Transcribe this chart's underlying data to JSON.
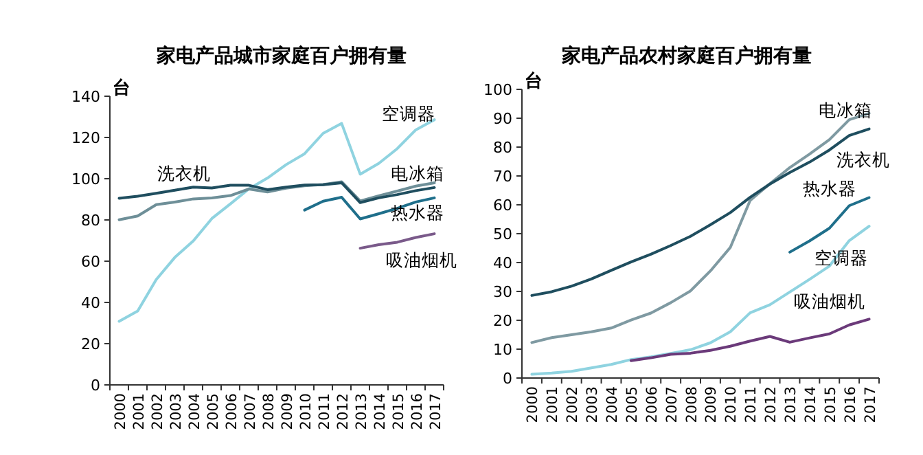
{
  "chart_data": [
    {
      "type": "line",
      "title": "家电产品城市家庭百户拥有量",
      "ylabel": "台",
      "categories": [
        "2000",
        "2001",
        "2002",
        "2003",
        "2004",
        "2005",
        "2006",
        "2007",
        "2008",
        "2009",
        "2010",
        "2011",
        "2012",
        "2013",
        "2014",
        "2015",
        "2016",
        "2017"
      ],
      "ylim": [
        0,
        140
      ],
      "yticks": [
        0,
        20,
        40,
        60,
        80,
        100,
        120,
        140
      ],
      "grid": false,
      "legend": false,
      "marker": "none",
      "line_style": "solid",
      "series": [
        {
          "name": "空调器",
          "color": "#8fd3e0",
          "values": [
            30.8,
            35.8,
            51.1,
            61.8,
            69.8,
            80.7,
            87.8,
            95.1,
            100.3,
            106.8,
            112.1,
            122.0,
            126.8,
            102.2,
            107.4,
            114.6,
            123.7,
            128.6
          ]
        },
        {
          "name": "电冰箱",
          "color": "#6e8f98",
          "values": [
            80.1,
            81.9,
            87.4,
            88.7,
            90.2,
            90.7,
            91.8,
            95.0,
            93.6,
            95.4,
            96.6,
            97.2,
            98.5,
            89.2,
            91.7,
            94.0,
            96.4,
            98.0
          ]
        },
        {
          "name": "洗衣机",
          "color": "#1f4e5f",
          "values": [
            90.5,
            91.5,
            92.9,
            94.4,
            95.9,
            95.5,
            96.8,
            96.8,
            94.7,
            95.9,
            96.9,
            97.1,
            98.0,
            88.4,
            90.7,
            92.3,
            94.2,
            95.7
          ]
        },
        {
          "name": "热水器",
          "color": "#1f6f8b",
          "values": [
            null,
            null,
            null,
            null,
            null,
            null,
            null,
            null,
            null,
            null,
            84.8,
            89.1,
            91.0,
            80.5,
            83.0,
            85.6,
            88.7,
            90.7
          ]
        },
        {
          "name": "吸油烟机",
          "color": "#7a5a8a",
          "values": [
            null,
            null,
            null,
            null,
            null,
            null,
            null,
            null,
            null,
            null,
            null,
            null,
            null,
            66.3,
            68.0,
            69.2,
            71.5,
            73.3
          ]
        }
      ]
    },
    {
      "type": "line",
      "title": "家电产品农村家庭百户拥有量",
      "ylabel": "台",
      "categories": [
        "2000",
        "2001",
        "2002",
        "2003",
        "2004",
        "2005",
        "2006",
        "2007",
        "2008",
        "2009",
        "2010",
        "2011",
        "2012",
        "2013",
        "2014",
        "2015",
        "2016",
        "2017"
      ],
      "ylim": [
        0,
        100
      ],
      "yticks": [
        0,
        10,
        20,
        30,
        40,
        50,
        60,
        70,
        80,
        90,
        100
      ],
      "grid": false,
      "legend": false,
      "marker": "none",
      "line_style": "solid",
      "series": [
        {
          "name": "电冰箱",
          "color": "#7f9aa2",
          "values": [
            12.3,
            14.0,
            15.0,
            16.0,
            17.3,
            20.1,
            22.5,
            26.1,
            30.2,
            37.1,
            45.2,
            61.5,
            67.3,
            72.9,
            77.6,
            82.6,
            89.5,
            91.7
          ]
        },
        {
          "name": "洗衣机",
          "color": "#1f4e5f",
          "values": [
            28.6,
            29.9,
            31.8,
            34.3,
            37.3,
            40.2,
            42.9,
            45.9,
            49.1,
            53.1,
            57.3,
            62.6,
            67.2,
            71.2,
            74.8,
            79.0,
            84.0,
            86.3
          ]
        },
        {
          "name": "热水器",
          "color": "#1f6f8b",
          "values": [
            null,
            null,
            null,
            null,
            null,
            null,
            null,
            null,
            null,
            null,
            null,
            null,
            null,
            43.6,
            47.5,
            51.9,
            59.7,
            62.5
          ]
        },
        {
          "name": "空调器",
          "color": "#8fd3e0",
          "values": [
            1.3,
            1.7,
            2.3,
            3.5,
            4.7,
            6.4,
            7.3,
            8.5,
            9.8,
            12.2,
            16.0,
            22.6,
            25.4,
            29.8,
            34.2,
            38.8,
            47.6,
            52.6
          ]
        },
        {
          "name": "吸油烟机",
          "color": "#6b3a7a",
          "values": [
            null,
            null,
            null,
            null,
            null,
            6.0,
            7.0,
            8.2,
            8.6,
            9.6,
            11.0,
            12.8,
            14.4,
            12.4,
            13.9,
            15.3,
            18.4,
            20.4
          ]
        }
      ]
    }
  ]
}
